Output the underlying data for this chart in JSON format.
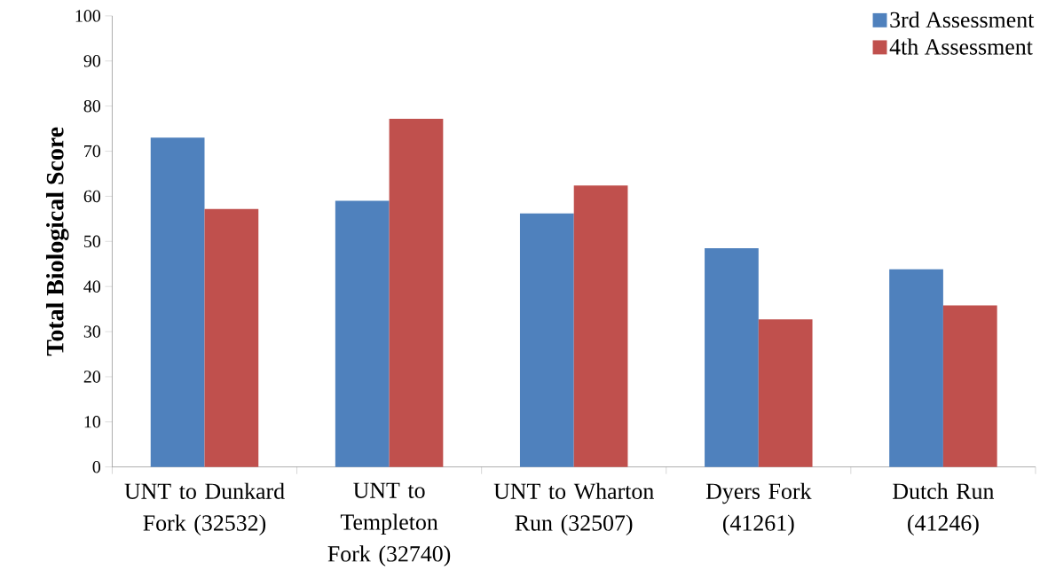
{
  "chart_data": {
    "type": "bar",
    "ylabel": "Total Biological Score",
    "categories": [
      "UNT to Dunkard Fork (32532)",
      "UNT to Templeton Fork (32740)",
      "UNT to Wharton Run (32507)",
      "Dyers Fork (41261)",
      "Dutch Run (41246)"
    ],
    "series": [
      {
        "name": "3rd Assessment",
        "color": "#4f81bd",
        "values": [
          73,
          59,
          56.2,
          48.5,
          43.8
        ]
      },
      {
        "name": "4th Assessment",
        "color": "#c0504d",
        "values": [
          57.2,
          77.2,
          62.4,
          32.7,
          35.8
        ]
      }
    ],
    "ylim": [
      0,
      100
    ],
    "yticks": [
      0,
      10,
      20,
      30,
      40,
      50,
      60,
      70,
      80,
      90,
      100
    ],
    "grid": false,
    "legend": "top right"
  }
}
